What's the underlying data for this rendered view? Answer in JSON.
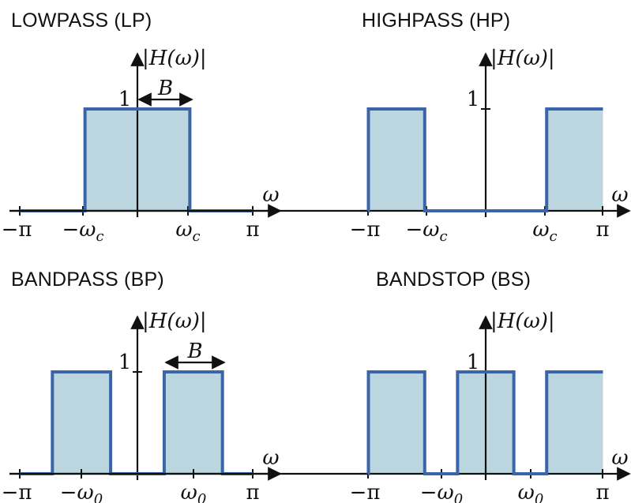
{
  "colors": {
    "fill": "#bcd6df",
    "line": "#3a65a8",
    "axis": "#111111"
  },
  "axis_labels": {
    "omega": "ω",
    "magnitude": "|H(ω)|",
    "one": "1",
    "minus_pi": "−π",
    "pi": "π",
    "bandwidth": "B"
  },
  "panels": [
    {
      "title": "LOWPASS (LP)",
      "cutoff_minus": "−ω",
      "cutoff_plus": "ω",
      "subscript": "c",
      "response": {
        "pass_bands": [
          [
            -0.45,
            0.45
          ]
        ],
        "gain": 1
      }
    },
    {
      "title": "HIGHPASS (HP)",
      "cutoff_minus": "−ω",
      "cutoff_plus": "ω",
      "subscript": "c",
      "response": {
        "pass_bands": [
          [
            -1,
            -0.52
          ],
          [
            0.52,
            1
          ]
        ],
        "gain": 1
      }
    },
    {
      "title": "BANDPASS (BP)",
      "cutoff_minus": "−ω",
      "cutoff_plus": "ω",
      "subscript": "0",
      "response": {
        "pass_bands": [
          [
            -0.73,
            -0.23
          ],
          [
            0.23,
            0.73
          ]
        ],
        "gain": 1
      }
    },
    {
      "title": "BANDSTOP (BS)",
      "cutoff_minus": "−ω",
      "cutoff_plus": "ω",
      "subscript": "0",
      "response": {
        "pass_bands": [
          [
            -1,
            -0.52
          ],
          [
            -0.24,
            0.24
          ],
          [
            0.52,
            1
          ]
        ],
        "gain": 1
      }
    }
  ]
}
